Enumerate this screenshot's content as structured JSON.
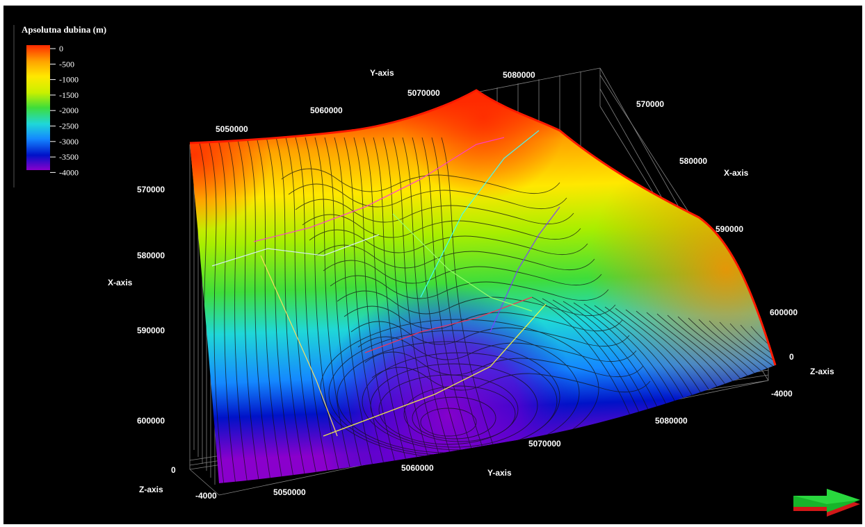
{
  "chart_data": {
    "type": "surface3d",
    "legend": {
      "title": "Apsolutna dubina (m)",
      "ticks": [
        "0",
        "-500",
        "-1000",
        "-1500",
        "-2000",
        "-2500",
        "-3000",
        "-3500",
        "-4000"
      ],
      "colors": [
        "#ff2a00",
        "#ffa300",
        "#ffe800",
        "#c9f000",
        "#3fdd3a",
        "#1fd7d8",
        "#1488ff",
        "#0012c8",
        "#8a00cc"
      ]
    },
    "y_axis": {
      "label": "Y-axis",
      "ticks_top": [
        "5050000",
        "5060000",
        "5070000",
        "5080000"
      ],
      "ticks_bottom": [
        "5050000",
        "5060000",
        "5070000",
        "5080000"
      ]
    },
    "x_axis": {
      "label": "X-axis",
      "ticks_left": [
        "570000",
        "580000",
        "590000",
        "600000"
      ],
      "ticks_right": [
        "570000",
        "580000",
        "590000",
        "600000"
      ]
    },
    "z_axis": {
      "label": "Z-axis",
      "ticks_left": [
        "0",
        "-4000"
      ],
      "ticks_right": [
        "0",
        "-4000"
      ]
    }
  }
}
